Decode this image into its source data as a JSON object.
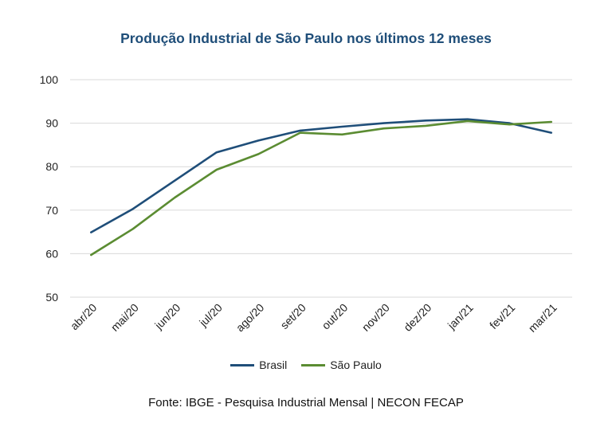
{
  "chart_data": {
    "type": "line",
    "title": "Produção Industrial de São Paulo nos últimos 12 meses",
    "categories": [
      "abr/20",
      "mai/20",
      "jun/20",
      "jul/20",
      "ago/20",
      "set/20",
      "out/20",
      "nov/20",
      "dez/20",
      "jan/21",
      "fev/21",
      "mar/21"
    ],
    "ylim": [
      50,
      100
    ],
    "yticks": [
      "50",
      "60",
      "70",
      "80",
      "90",
      "100"
    ],
    "grid": true,
    "legend_position": "bottom",
    "series": [
      {
        "name": "Brasil",
        "color": "#1f4e79",
        "values": [
          64.9,
          70.3,
          76.8,
          83.3,
          86.0,
          88.3,
          89.2,
          90.0,
          90.6,
          90.9,
          90.0,
          87.8
        ]
      },
      {
        "name": "São Paulo",
        "color": "#5b8c32",
        "values": [
          59.7,
          65.7,
          72.9,
          79.3,
          82.9,
          87.8,
          87.4,
          88.8,
          89.4,
          90.5,
          89.7,
          90.3
        ]
      }
    ]
  },
  "source": "Fonte: IBGE - Pesquisa Industrial Mensal | NECON FECAP"
}
